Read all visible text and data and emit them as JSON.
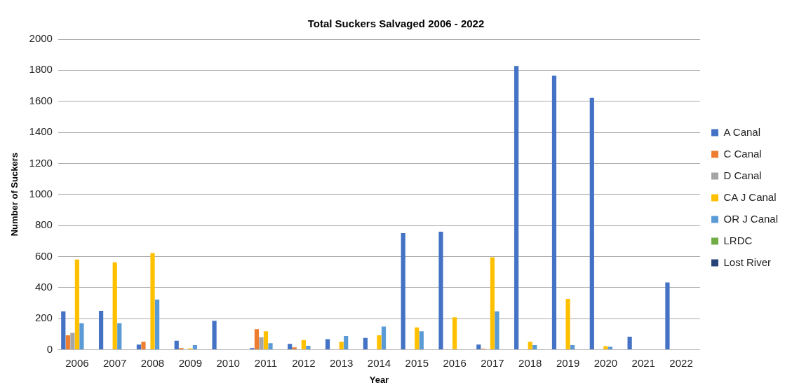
{
  "chart_data": {
    "type": "bar",
    "title": "Total Suckers Salvaged 2006 - 2022",
    "xlabel": "Year",
    "ylabel": "Number of Suckers",
    "categories": [
      "2006",
      "2007",
      "2008",
      "2009",
      "2010",
      "2011",
      "2012",
      "2013",
      "2014",
      "2015",
      "2016",
      "2017",
      "2018",
      "2019",
      "2020",
      "2021",
      "2022"
    ],
    "series": [
      {
        "name": "A Canal",
        "color": "#4472c4",
        "values": [
          246,
          250,
          32,
          57,
          186,
          10,
          37,
          67,
          75,
          751,
          760,
          32,
          1828,
          1766,
          1622,
          83,
          433
        ]
      },
      {
        "name": "C Canal",
        "color": "#ed7d31",
        "values": [
          92,
          0,
          50,
          10,
          null,
          132,
          14,
          0,
          0,
          0,
          0,
          5,
          0,
          0,
          0,
          0,
          0
        ]
      },
      {
        "name": "D Canal",
        "color": "#a5a5a5",
        "values": [
          108,
          0,
          0,
          0,
          0,
          80,
          0,
          0,
          0,
          0,
          null,
          0,
          null,
          0,
          0,
          0,
          0
        ]
      },
      {
        "name": "CA J Canal",
        "color": "#ffc000",
        "values": [
          580,
          562,
          622,
          7,
          null,
          118,
          62,
          50,
          92,
          143,
          208,
          595,
          50,
          327,
          22,
          0,
          0
        ]
      },
      {
        "name": "OR J Canal",
        "color": "#5b9bd5",
        "values": [
          170,
          170,
          322,
          29,
          null,
          41,
          24,
          88,
          148,
          118,
          0,
          246,
          29,
          29,
          19,
          0,
          0
        ]
      },
      {
        "name": "LRDC",
        "color": "#70ad47",
        "values": [
          0,
          0,
          0,
          0,
          0,
          0,
          0,
          0,
          0,
          0,
          0,
          0,
          0,
          0,
          0,
          0,
          0
        ]
      },
      {
        "name": "Lost River",
        "color": "#264478",
        "values": [
          0,
          0,
          0,
          0,
          0,
          0,
          0,
          0,
          0,
          0,
          0,
          0,
          0,
          0,
          0,
          0,
          0
        ]
      }
    ],
    "ylim": [
      0,
      2000
    ],
    "yticks": [
      0,
      200,
      400,
      600,
      800,
      1000,
      1200,
      1400,
      1600,
      1800,
      2000
    ],
    "grid": "y",
    "legend": "right"
  }
}
